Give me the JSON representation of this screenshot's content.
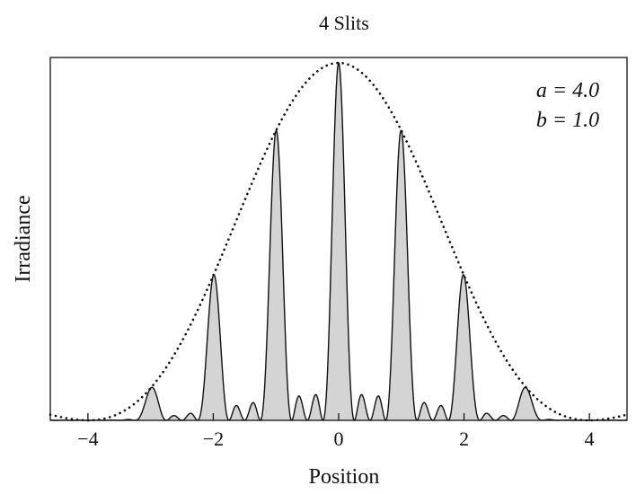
{
  "chart_data": {
    "type": "area",
    "title": "4 Slits",
    "xlabel": "Position",
    "ylabel": "Irradiance",
    "xlim": [
      -4.6,
      4.6
    ],
    "ylim": [
      0,
      1.0
    ],
    "xticks": [
      -4,
      -2,
      0,
      2,
      4
    ],
    "xtick_labels": [
      "−4",
      "−2",
      "0",
      "2",
      "4"
    ],
    "grid": false,
    "annotations": [
      "a = 4.0",
      "b = 1.0"
    ],
    "annotation_position": "top-right",
    "model": {
      "slits": 4,
      "a": 4.0,
      "b": 1.0
    },
    "series": [
      {
        "style": "solid-filled",
        "fill_color": "#d4d4d4",
        "line_color": "#111111"
      },
      {
        "style": "dotted",
        "line_color": "#111111"
      }
    ]
  }
}
